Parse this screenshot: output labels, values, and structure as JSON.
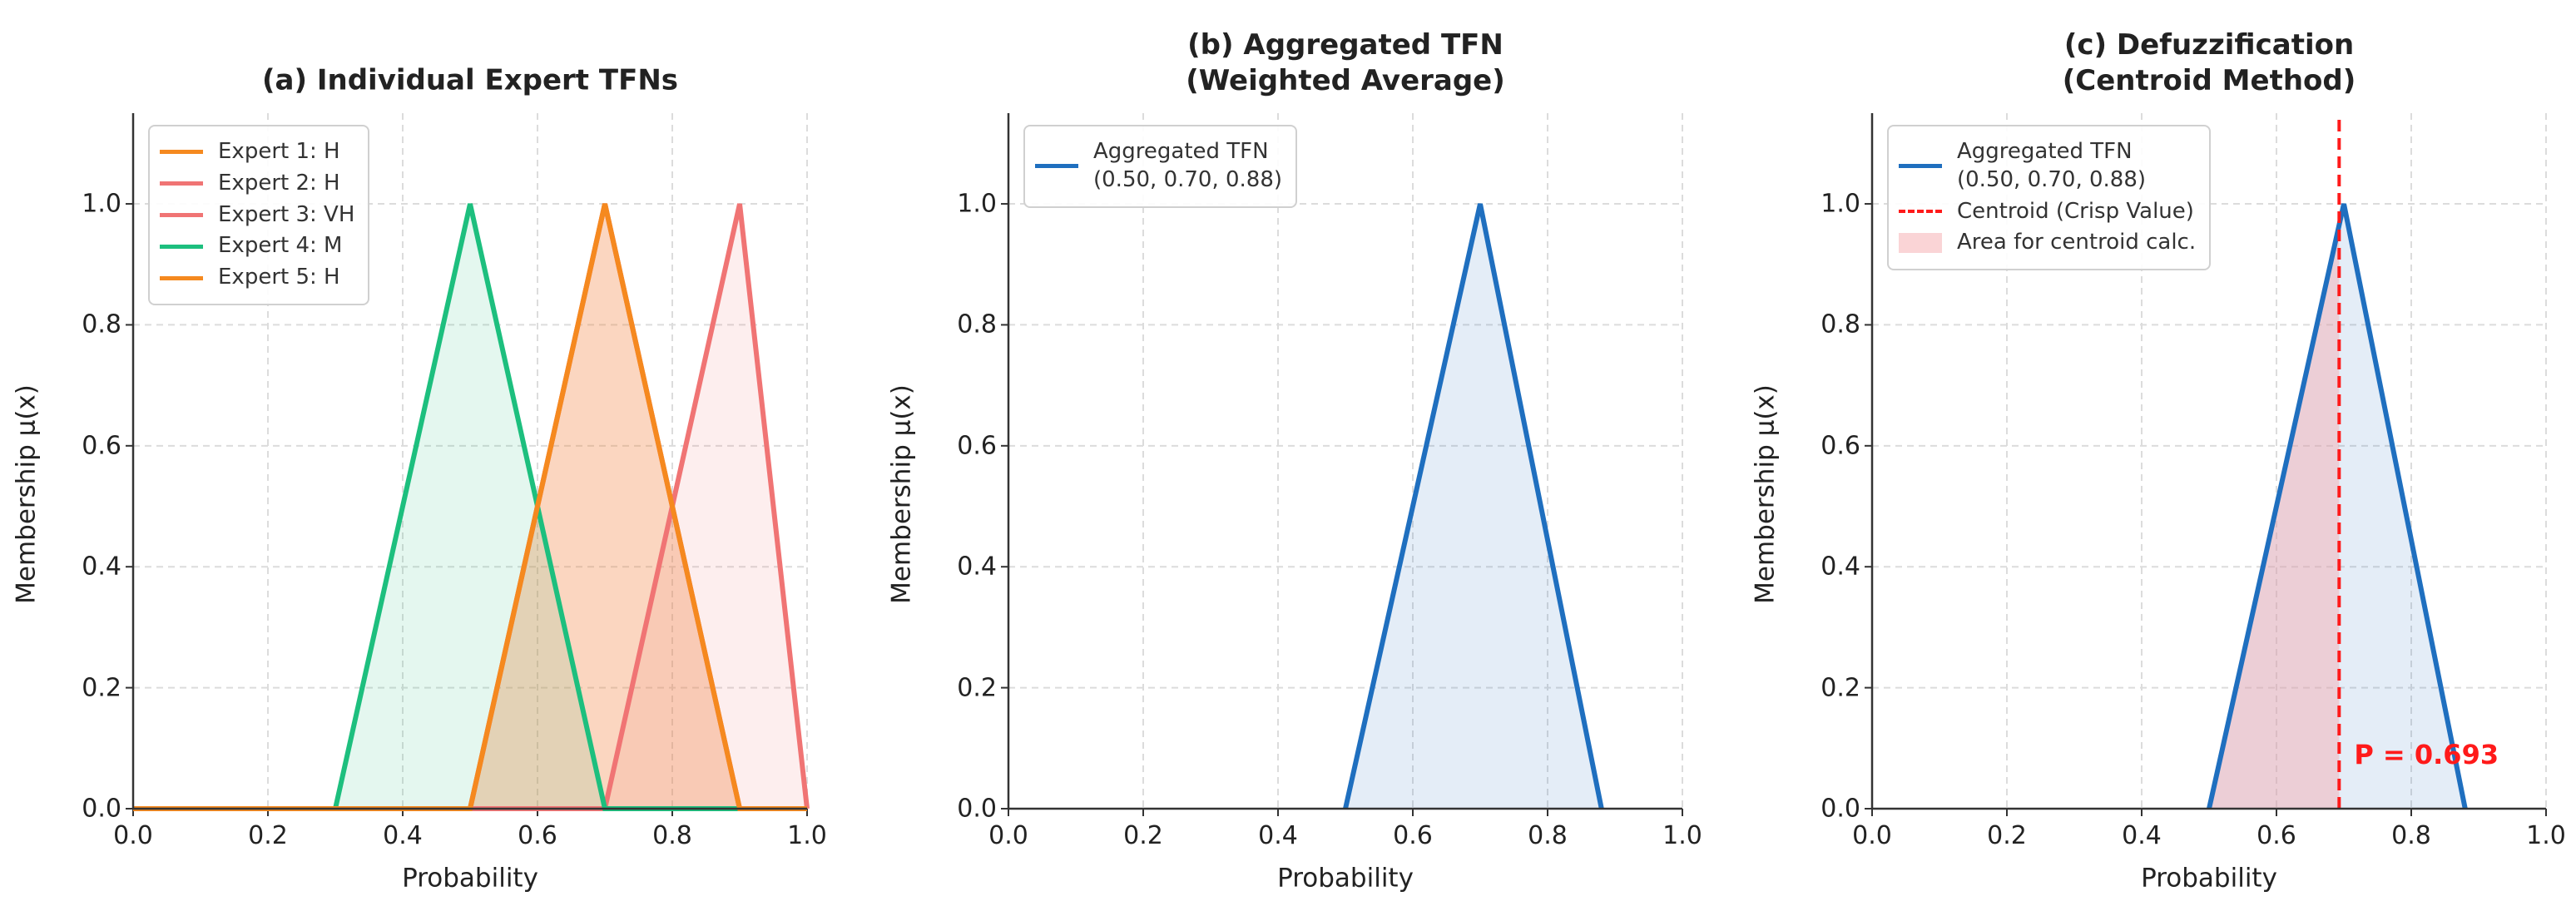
{
  "chart_data": [
    {
      "type": "line",
      "title": "(a) Individual Expert TFNs",
      "xlabel": "Probability",
      "ylabel": "Membership μ(x)",
      "xlim": [
        0,
        1
      ],
      "ylim": [
        0,
        1.15
      ],
      "xticks": [
        {
          "value": 0,
          "label": "0.0"
        },
        {
          "value": 0.2,
          "label": "0.2"
        },
        {
          "value": 0.4,
          "label": "0.4"
        },
        {
          "value": 0.6,
          "label": "0.6"
        },
        {
          "value": 0.8,
          "label": "0.8"
        },
        {
          "value": 1,
          "label": "1.0"
        }
      ],
      "yticks": [
        {
          "value": 0,
          "label": "0.0"
        },
        {
          "value": 0.2,
          "label": "0.2"
        },
        {
          "value": 0.4,
          "label": "0.4"
        },
        {
          "value": 0.6,
          "label": "0.6"
        },
        {
          "value": 0.8,
          "label": "0.8"
        },
        {
          "value": 1,
          "label": "1.0"
        }
      ],
      "grid": true,
      "legend": "upper left",
      "series": [
        {
          "name": "Expert 1: H",
          "color": "#f5891f",
          "x": [
            0,
            0.5,
            0.7,
            0.9,
            1
          ],
          "values": [
            0,
            0,
            1,
            0,
            0
          ]
        },
        {
          "name": "Expert 2: H",
          "color": "#f07474",
          "x": [
            0,
            0.5,
            0.7,
            0.9,
            1
          ],
          "values": [
            0,
            0,
            1,
            0,
            0
          ]
        },
        {
          "name": "Expert 3: VH",
          "color": "#f07474",
          "x": [
            0,
            0.7,
            0.9,
            1
          ],
          "values": [
            0,
            0,
            1,
            0
          ]
        },
        {
          "name": "Expert 4: M",
          "color": "#1dbf7e",
          "x": [
            0,
            0.3,
            0.5,
            0.7,
            1
          ],
          "values": [
            0,
            0,
            1,
            0,
            0
          ]
        },
        {
          "name": "Expert 5: H",
          "color": "#f5891f",
          "x": [
            0,
            0.5,
            0.7,
            0.9,
            1
          ],
          "values": [
            0,
            0,
            1,
            0,
            0
          ]
        }
      ]
    },
    {
      "type": "line",
      "title": "(b) Aggregated TFN\n(Weighted Average)",
      "xlabel": "Probability",
      "ylabel": "Membership μ(x)",
      "xlim": [
        0,
        1
      ],
      "ylim": [
        0,
        1.15
      ],
      "xticks": [
        {
          "value": 0,
          "label": "0.0"
        },
        {
          "value": 0.2,
          "label": "0.2"
        },
        {
          "value": 0.4,
          "label": "0.4"
        },
        {
          "value": 0.6,
          "label": "0.6"
        },
        {
          "value": 0.8,
          "label": "0.8"
        },
        {
          "value": 1,
          "label": "1.0"
        }
      ],
      "yticks": [
        {
          "value": 0,
          "label": "0.0"
        },
        {
          "value": 0.2,
          "label": "0.2"
        },
        {
          "value": 0.4,
          "label": "0.4"
        },
        {
          "value": 0.6,
          "label": "0.6"
        },
        {
          "value": 0.8,
          "label": "0.8"
        },
        {
          "value": 1,
          "label": "1.0"
        }
      ],
      "grid": true,
      "legend": "upper left",
      "series": [
        {
          "name": "Aggregated TFN\n(0.50, 0.70, 0.88)",
          "color": "#1f6fbf",
          "x": [
            0.5,
            0.7,
            0.88
          ],
          "values": [
            0,
            1,
            0
          ]
        }
      ]
    },
    {
      "type": "line",
      "title": "(c) Defuzzification\n(Centroid Method)",
      "xlabel": "Probability",
      "ylabel": "Membership μ(x)",
      "xlim": [
        0,
        1
      ],
      "ylim": [
        0,
        1.15
      ],
      "xticks": [
        {
          "value": 0,
          "label": "0.0"
        },
        {
          "value": 0.2,
          "label": "0.2"
        },
        {
          "value": 0.4,
          "label": "0.4"
        },
        {
          "value": 0.6,
          "label": "0.6"
        },
        {
          "value": 0.8,
          "label": "0.8"
        },
        {
          "value": 1,
          "label": "1.0"
        }
      ],
      "yticks": [
        {
          "value": 0,
          "label": "0.0"
        },
        {
          "value": 0.2,
          "label": "0.2"
        },
        {
          "value": 0.4,
          "label": "0.4"
        },
        {
          "value": 0.6,
          "label": "0.6"
        },
        {
          "value": 0.8,
          "label": "0.8"
        },
        {
          "value": 1,
          "label": "1.0"
        }
      ],
      "grid": true,
      "legend": "upper left",
      "series": [
        {
          "name": "Aggregated TFN\n(0.50, 0.70, 0.88)",
          "color": "#1f6fbf",
          "x": [
            0.5,
            0.7,
            0.88
          ],
          "values": [
            0,
            1,
            0
          ]
        }
      ],
      "centroid": {
        "name": "Centroid (Crisp Value)",
        "value": 0.693,
        "color": "#ff1a1a"
      },
      "area": {
        "name": "Area for centroid calc.",
        "color": "#f6a9ad"
      },
      "annotation": "P = 0.693"
    }
  ]
}
